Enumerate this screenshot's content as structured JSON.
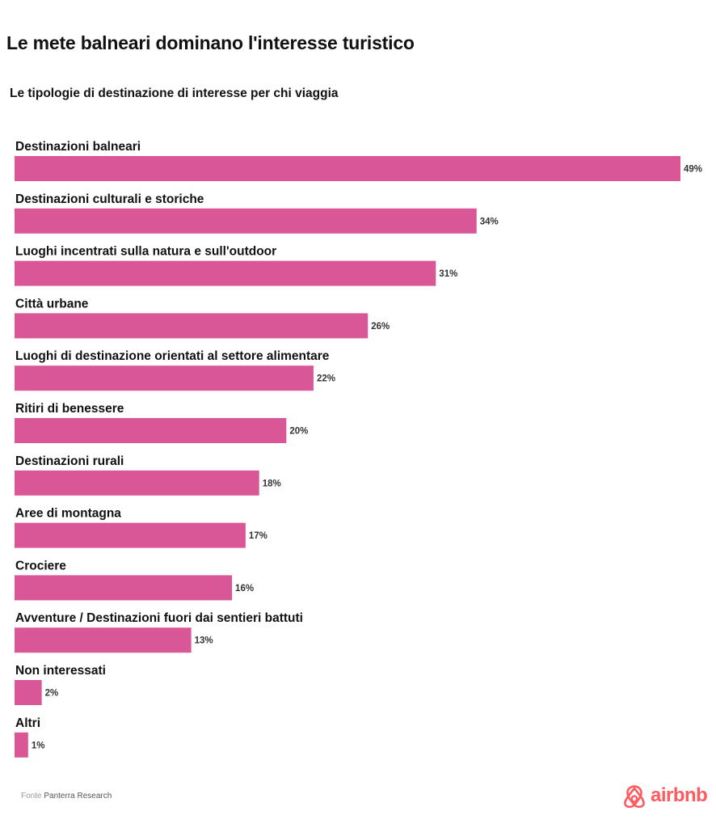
{
  "title": "Le mete balneari dominano l'interesse turistico",
  "subtitle": "Le tipologie di destinazione di interesse per chi viaggia",
  "source": {
    "prefix": "Fonte",
    "name": "Panterra Research"
  },
  "logo": {
    "icon": "airbnb-belo-icon",
    "text": "airbnb",
    "color": "#ff5a5f"
  },
  "colors": {
    "bar": "#d95796"
  },
  "chart_data": {
    "type": "bar",
    "orientation": "horizontal",
    "categories": [
      "Destinazioni balneari",
      "Destinazioni culturali e storiche",
      "Luoghi incentrati sulla natura e sull'outdoor",
      "Città urbane",
      "Luoghi di destinazione orientati al settore alimentare",
      "Ritiri di benessere",
      "Destinazioni rurali",
      "Aree di montagna",
      "Crociere",
      "Avventure / Destinazioni fuori dai sentieri battuti",
      "Non interessati",
      "Altri"
    ],
    "values": [
      49,
      34,
      31,
      26,
      22,
      20,
      18,
      17,
      16,
      13,
      2,
      1
    ],
    "value_labels": [
      "49%",
      "34%",
      "31%",
      "26%",
      "22%",
      "20%",
      "18%",
      "17%",
      "16%",
      "13%",
      "2%",
      "1%"
    ],
    "unit": "%",
    "title": "Le mete balneari dominano l'interesse turistico",
    "subtitle": "Le tipologie di destinazione di interesse per chi viaggia",
    "xlabel": "",
    "ylabel": "",
    "grid": false,
    "legend": "none"
  }
}
